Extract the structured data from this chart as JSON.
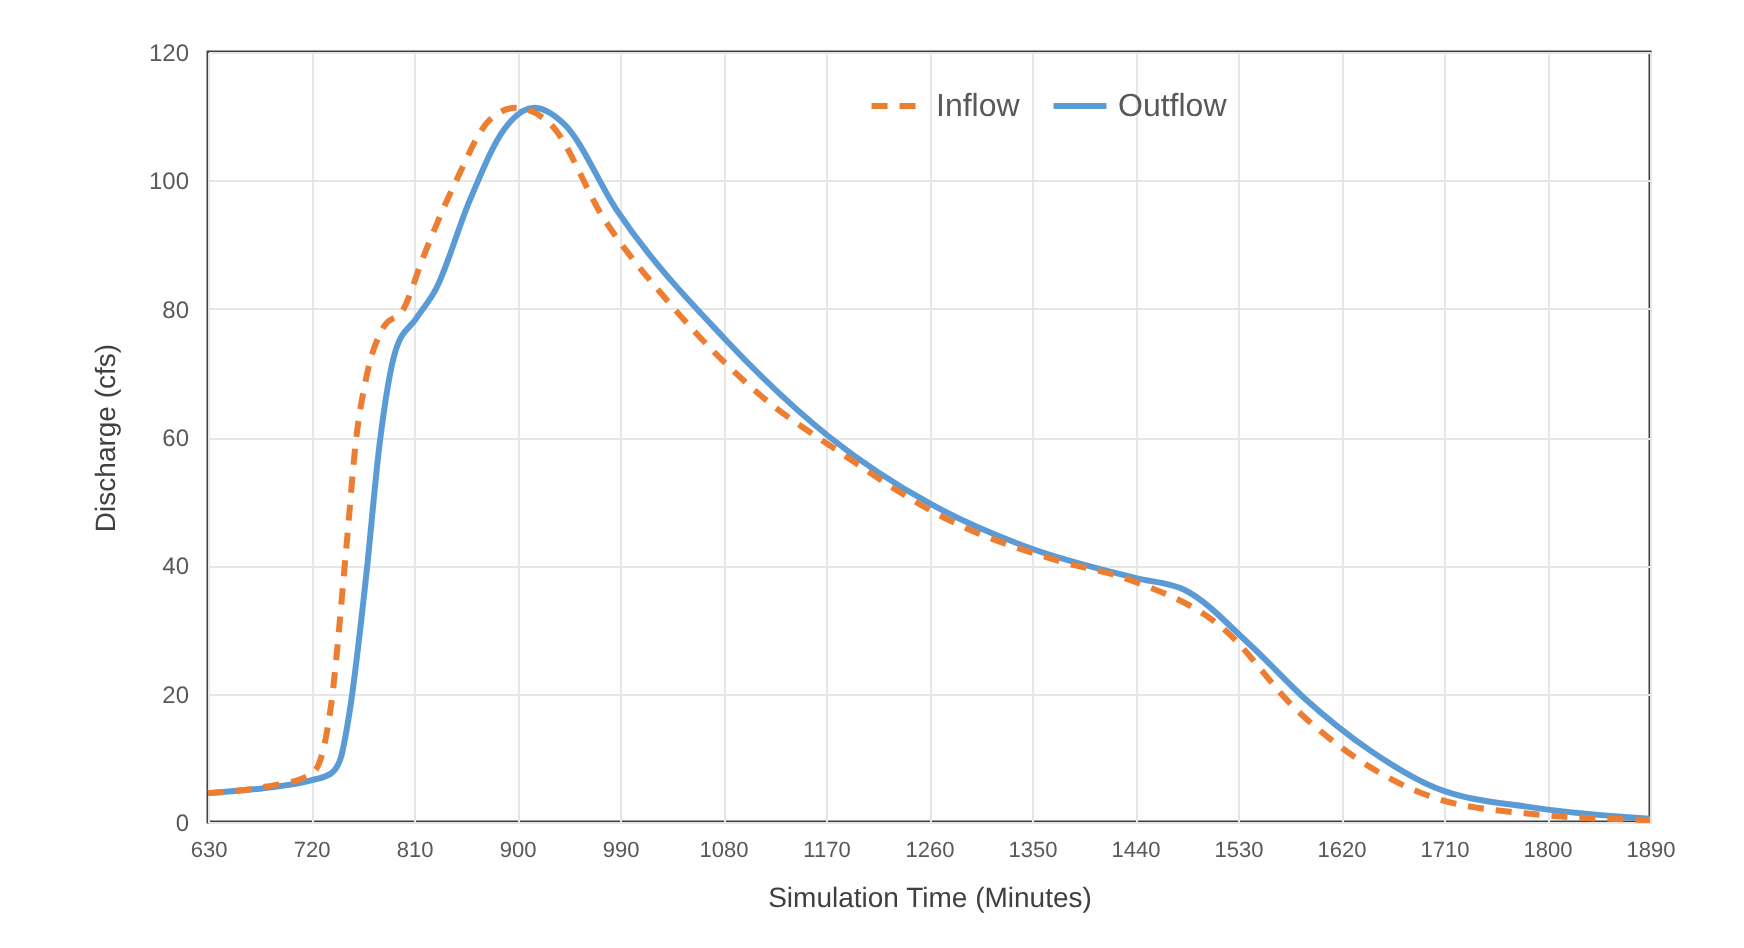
{
  "chart_data": {
    "type": "line",
    "xlabel": "Simulation Time (Minutes)",
    "ylabel": "Discharge (cfs)",
    "xlim": [
      630,
      1890
    ],
    "xticks": [
      630,
      720,
      810,
      900,
      990,
      1080,
      1170,
      1260,
      1350,
      1440,
      1530,
      1620,
      1710,
      1800,
      1890
    ],
    "ylim": [
      0,
      120
    ],
    "yticks": [
      0,
      20,
      40,
      60,
      80,
      100,
      120
    ],
    "grid": true,
    "legend": "top",
    "series": [
      {
        "name": "Inflow",
        "color": "#ed7d31",
        "line_style": "dashed",
        "x": [
          630,
          680,
          715,
          725,
          737,
          751,
          759,
          768,
          783,
          801,
          818,
          847,
          876,
          899,
          929,
          976,
          1034,
          1116,
          1179,
          1278,
          1371,
          1436,
          1518,
          1581,
          1633,
          1703,
          1790,
          1890
        ],
        "values": [
          4.5,
          5.5,
          7,
          8.4,
          17.5,
          43,
          59,
          69,
          77,
          80,
          88,
          100,
          109.4,
          111.3,
          108.8,
          94,
          80.7,
          66,
          58,
          47,
          40.8,
          37.7,
          30,
          17.5,
          10,
          3.7,
          1.2,
          0.3
        ]
      },
      {
        "name": "Outflow",
        "color": "#5b9bd5",
        "line_style": "solid",
        "x": [
          630,
          680,
          720,
          737,
          746,
          754,
          768,
          780,
          794,
          812,
          829,
          859,
          889,
          915,
          941,
          987,
          1081,
          1173,
          1261,
          1348,
          1441,
          1483,
          1540,
          1588,
          1645,
          1703,
          1790,
          1890
        ],
        "values": [
          4.5,
          5.3,
          6.5,
          7.5,
          10,
          17.5,
          38,
          59,
          73.5,
          78.5,
          83,
          97,
          108,
          111.3,
          108.8,
          95.4,
          75.4,
          60,
          49.6,
          42.7,
          38,
          36.2,
          27.7,
          19.3,
          11.2,
          5.3,
          2.2,
          0.5
        ]
      }
    ]
  }
}
